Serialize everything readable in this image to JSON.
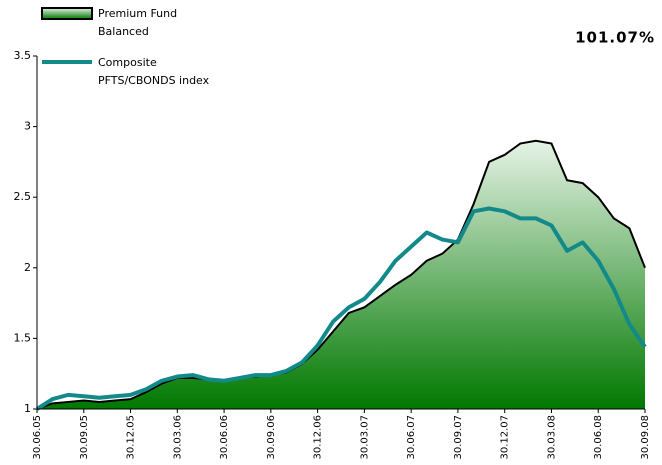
{
  "chart_data": {
    "type": "area_line",
    "annotation": "101.07%",
    "categories": [
      "30.06.05",
      null,
      null,
      "30.09.05",
      null,
      null,
      "30.12.05",
      null,
      null,
      "30.03.06",
      null,
      null,
      "30.06.06",
      null,
      null,
      "30.09.06",
      null,
      null,
      "30.12.06",
      null,
      null,
      "30.03.07",
      null,
      null,
      "30.06.07",
      null,
      null,
      "30.09.07",
      null,
      null,
      "30.12.07",
      null,
      null,
      "30.03.08",
      null,
      null,
      "30.06.08",
      null,
      null,
      "30.09.08"
    ],
    "series": [
      {
        "name": "Premium Fund Balanced",
        "color": "#000000",
        "values": [
          1.0,
          1.04,
          1.05,
          1.06,
          1.05,
          1.06,
          1.07,
          1.12,
          1.18,
          1.22,
          1.22,
          1.21,
          1.2,
          1.22,
          1.23,
          1.24,
          1.26,
          1.32,
          1.42,
          1.55,
          1.68,
          1.72,
          1.8,
          1.88,
          1.95,
          2.05,
          2.1,
          2.2,
          2.45,
          2.75,
          2.8,
          2.88,
          2.9,
          2.88,
          2.62,
          2.6,
          2.5,
          2.35,
          2.28,
          2.0
        ]
      },
      {
        "name": "Composite PFTS/CBONDS index",
        "color": "#138a8a",
        "values": [
          1.0,
          1.07,
          1.1,
          1.09,
          1.08,
          1.09,
          1.1,
          1.14,
          1.2,
          1.23,
          1.24,
          1.21,
          1.2,
          1.22,
          1.24,
          1.24,
          1.27,
          1.33,
          1.45,
          1.62,
          1.72,
          1.78,
          1.9,
          2.05,
          2.15,
          2.25,
          2.2,
          2.18,
          2.4,
          2.42,
          2.4,
          2.35,
          2.35,
          2.3,
          2.12,
          2.18,
          2.05,
          1.85,
          1.6,
          1.44
        ]
      }
    ],
    "ylim": [
      1,
      3.5
    ],
    "yticks": [
      1,
      1.5,
      2,
      2.5,
      3,
      3.5
    ]
  }
}
